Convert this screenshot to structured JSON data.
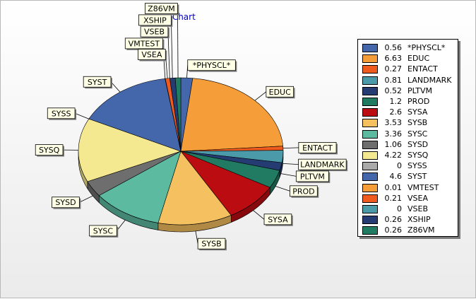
{
  "chart_data": {
    "type": "pie",
    "title": "TChart",
    "legend_position": "right",
    "slices": [
      {
        "label": "*PHYSCL*",
        "value": 0.56,
        "color": "#4466aa"
      },
      {
        "label": "EDUC",
        "value": 6.63,
        "color": "#f59d38"
      },
      {
        "label": "ENTACT",
        "value": 0.27,
        "color": "#ef5a1e"
      },
      {
        "label": "LANDMARK",
        "value": 0.81,
        "color": "#4a9aaa"
      },
      {
        "label": "PLTVM",
        "value": 0.52,
        "color": "#243c72"
      },
      {
        "label": "PROD",
        "value": 1.2,
        "color": "#217a62"
      },
      {
        "label": "SYSA",
        "value": 2.6,
        "color": "#bb0c12"
      },
      {
        "label": "SYSB",
        "value": 3.53,
        "color": "#f4c060"
      },
      {
        "label": "SYSC",
        "value": 3.36,
        "color": "#5cbaa0"
      },
      {
        "label": "SYSD",
        "value": 1.06,
        "color": "#6e6e6e"
      },
      {
        "label": "SYSQ",
        "value": 4.22,
        "color": "#f4e890"
      },
      {
        "label": "SYSS",
        "value": 0,
        "color": "#aaaaaa"
      },
      {
        "label": "SYST",
        "value": 4.6,
        "color": "#4466aa"
      },
      {
        "label": "VMTEST",
        "value": 0.01,
        "color": "#f59d38"
      },
      {
        "label": "VSEA",
        "value": 0.21,
        "color": "#ef5a1e"
      },
      {
        "label": "VSEB",
        "value": 0,
        "color": "#4a9aaa"
      },
      {
        "label": "XSHIP",
        "value": 0.26,
        "color": "#243c72"
      },
      {
        "label": "Z86VM",
        "value": 0.26,
        "color": "#217a62"
      }
    ]
  }
}
